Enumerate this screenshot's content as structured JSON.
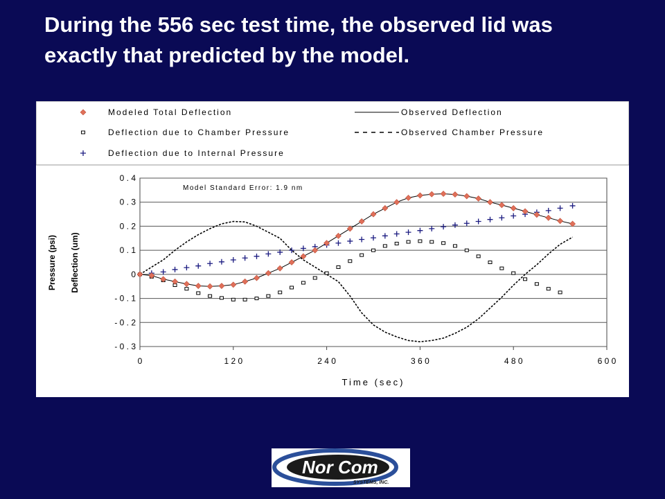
{
  "slide": {
    "title_line1": "During the 556 sec test time, the observed lid was",
    "title_line2": "exactly that predicted by the model."
  },
  "colors": {
    "background": "#0a0a55",
    "modeled": "#e0705a",
    "chamber_deflection": "#000000",
    "internal_deflection": "#1a1a80",
    "observed": "#000000"
  },
  "chart_data": {
    "type": "line",
    "xlabel": "Time (sec)",
    "ylabel_outer": "Pressure (psi)",
    "ylabel_inner": "Deflection (um)",
    "xlim": [
      0,
      600
    ],
    "ylim": [
      -0.3,
      0.4
    ],
    "x_ticks": [
      0,
      120,
      240,
      360,
      480,
      600
    ],
    "y_ticks": [
      0.4,
      0.3,
      0.2,
      0.1,
      0,
      -0.1,
      -0.2,
      -0.3
    ],
    "grid": "horizontal",
    "legend_position": "top",
    "annotation": "Model Standard Error: 1.9 nm",
    "series": [
      {
        "name": "Modeled Total Deflection",
        "style": "orange-diamond-markers",
        "x": [
          0,
          15,
          30,
          45,
          60,
          75,
          90,
          105,
          120,
          135,
          150,
          165,
          180,
          195,
          210,
          225,
          240,
          255,
          270,
          285,
          300,
          315,
          330,
          345,
          360,
          375,
          390,
          405,
          420,
          435,
          450,
          465,
          480,
          495,
          510,
          525,
          540,
          556
        ],
        "y": [
          0,
          -0.005,
          -0.02,
          -0.03,
          -0.04,
          -0.048,
          -0.05,
          -0.048,
          -0.043,
          -0.03,
          -0.015,
          0.005,
          0.025,
          0.05,
          0.075,
          0.1,
          0.13,
          0.16,
          0.19,
          0.22,
          0.25,
          0.275,
          0.3,
          0.318,
          0.328,
          0.333,
          0.335,
          0.332,
          0.325,
          0.315,
          0.3,
          0.288,
          0.275,
          0.262,
          0.248,
          0.235,
          0.222,
          0.21
        ]
      },
      {
        "name": "Deflection due to Chamber Pressure",
        "style": "hollow-square-markers",
        "x": [
          0,
          15,
          30,
          45,
          60,
          75,
          90,
          105,
          120,
          135,
          150,
          165,
          180,
          195,
          210,
          225,
          240,
          255,
          270,
          285,
          300,
          315,
          330,
          345,
          360,
          375,
          390,
          405,
          420,
          435,
          450,
          465,
          480,
          495,
          510,
          525,
          540
        ],
        "y": [
          0,
          -0.01,
          -0.025,
          -0.045,
          -0.06,
          -0.078,
          -0.09,
          -0.098,
          -0.105,
          -0.105,
          -0.1,
          -0.09,
          -0.075,
          -0.055,
          -0.035,
          -0.015,
          0.005,
          0.03,
          0.055,
          0.08,
          0.1,
          0.118,
          0.128,
          0.135,
          0.138,
          0.135,
          0.13,
          0.118,
          0.1,
          0.075,
          0.05,
          0.025,
          0.005,
          -0.02,
          -0.04,
          -0.06,
          -0.075
        ]
      },
      {
        "name": "Deflection due to Internal Pressure",
        "style": "plus-markers",
        "x": [
          0,
          15,
          30,
          45,
          60,
          75,
          90,
          105,
          120,
          135,
          150,
          165,
          180,
          195,
          210,
          225,
          240,
          255,
          270,
          285,
          300,
          315,
          330,
          345,
          360,
          375,
          390,
          405,
          420,
          435,
          450,
          465,
          480,
          495,
          510,
          525,
          540,
          556
        ],
        "y": [
          0,
          0.005,
          0.01,
          0.02,
          0.028,
          0.035,
          0.045,
          0.052,
          0.06,
          0.068,
          0.075,
          0.085,
          0.092,
          0.1,
          0.108,
          0.115,
          0.122,
          0.13,
          0.138,
          0.145,
          0.152,
          0.16,
          0.168,
          0.175,
          0.182,
          0.19,
          0.198,
          0.205,
          0.212,
          0.22,
          0.228,
          0.235,
          0.243,
          0.25,
          0.258,
          0.265,
          0.275,
          0.285
        ]
      },
      {
        "name": "Observed Deflection",
        "style": "solid-line",
        "x": [
          0,
          15,
          30,
          45,
          60,
          75,
          90,
          105,
          120,
          135,
          150,
          165,
          180,
          195,
          210,
          225,
          240,
          255,
          270,
          285,
          300,
          315,
          330,
          345,
          360,
          375,
          390,
          405,
          420,
          435,
          450,
          465,
          480,
          495,
          510,
          525,
          540,
          556
        ],
        "y": [
          0,
          -0.005,
          -0.02,
          -0.03,
          -0.04,
          -0.048,
          -0.05,
          -0.048,
          -0.043,
          -0.03,
          -0.015,
          0.005,
          0.025,
          0.05,
          0.075,
          0.1,
          0.13,
          0.16,
          0.19,
          0.22,
          0.25,
          0.275,
          0.3,
          0.318,
          0.328,
          0.333,
          0.335,
          0.332,
          0.325,
          0.315,
          0.3,
          0.288,
          0.275,
          0.262,
          0.248,
          0.235,
          0.222,
          0.21
        ]
      },
      {
        "name": "Observed Chamber Pressure",
        "style": "dashed-line",
        "x": [
          0,
          15,
          30,
          45,
          60,
          75,
          90,
          105,
          120,
          135,
          150,
          165,
          180,
          195,
          210,
          225,
          240,
          255,
          270,
          285,
          300,
          315,
          330,
          345,
          360,
          375,
          390,
          405,
          420,
          435,
          450,
          465,
          480,
          495,
          510,
          525,
          540,
          556
        ],
        "y": [
          0,
          0.03,
          0.06,
          0.1,
          0.135,
          0.165,
          0.19,
          0.21,
          0.22,
          0.218,
          0.2,
          0.175,
          0.15,
          0.1,
          0.06,
          0.03,
          0.0,
          -0.03,
          -0.09,
          -0.16,
          -0.21,
          -0.24,
          -0.26,
          -0.275,
          -0.28,
          -0.275,
          -0.265,
          -0.245,
          -0.22,
          -0.185,
          -0.14,
          -0.095,
          -0.045,
          0.0,
          0.04,
          0.085,
          0.125,
          0.155
        ]
      }
    ]
  },
  "logo": {
    "name_left": "Nor",
    "name_right": "Com",
    "tagline": "SYSTEMS, INC."
  }
}
